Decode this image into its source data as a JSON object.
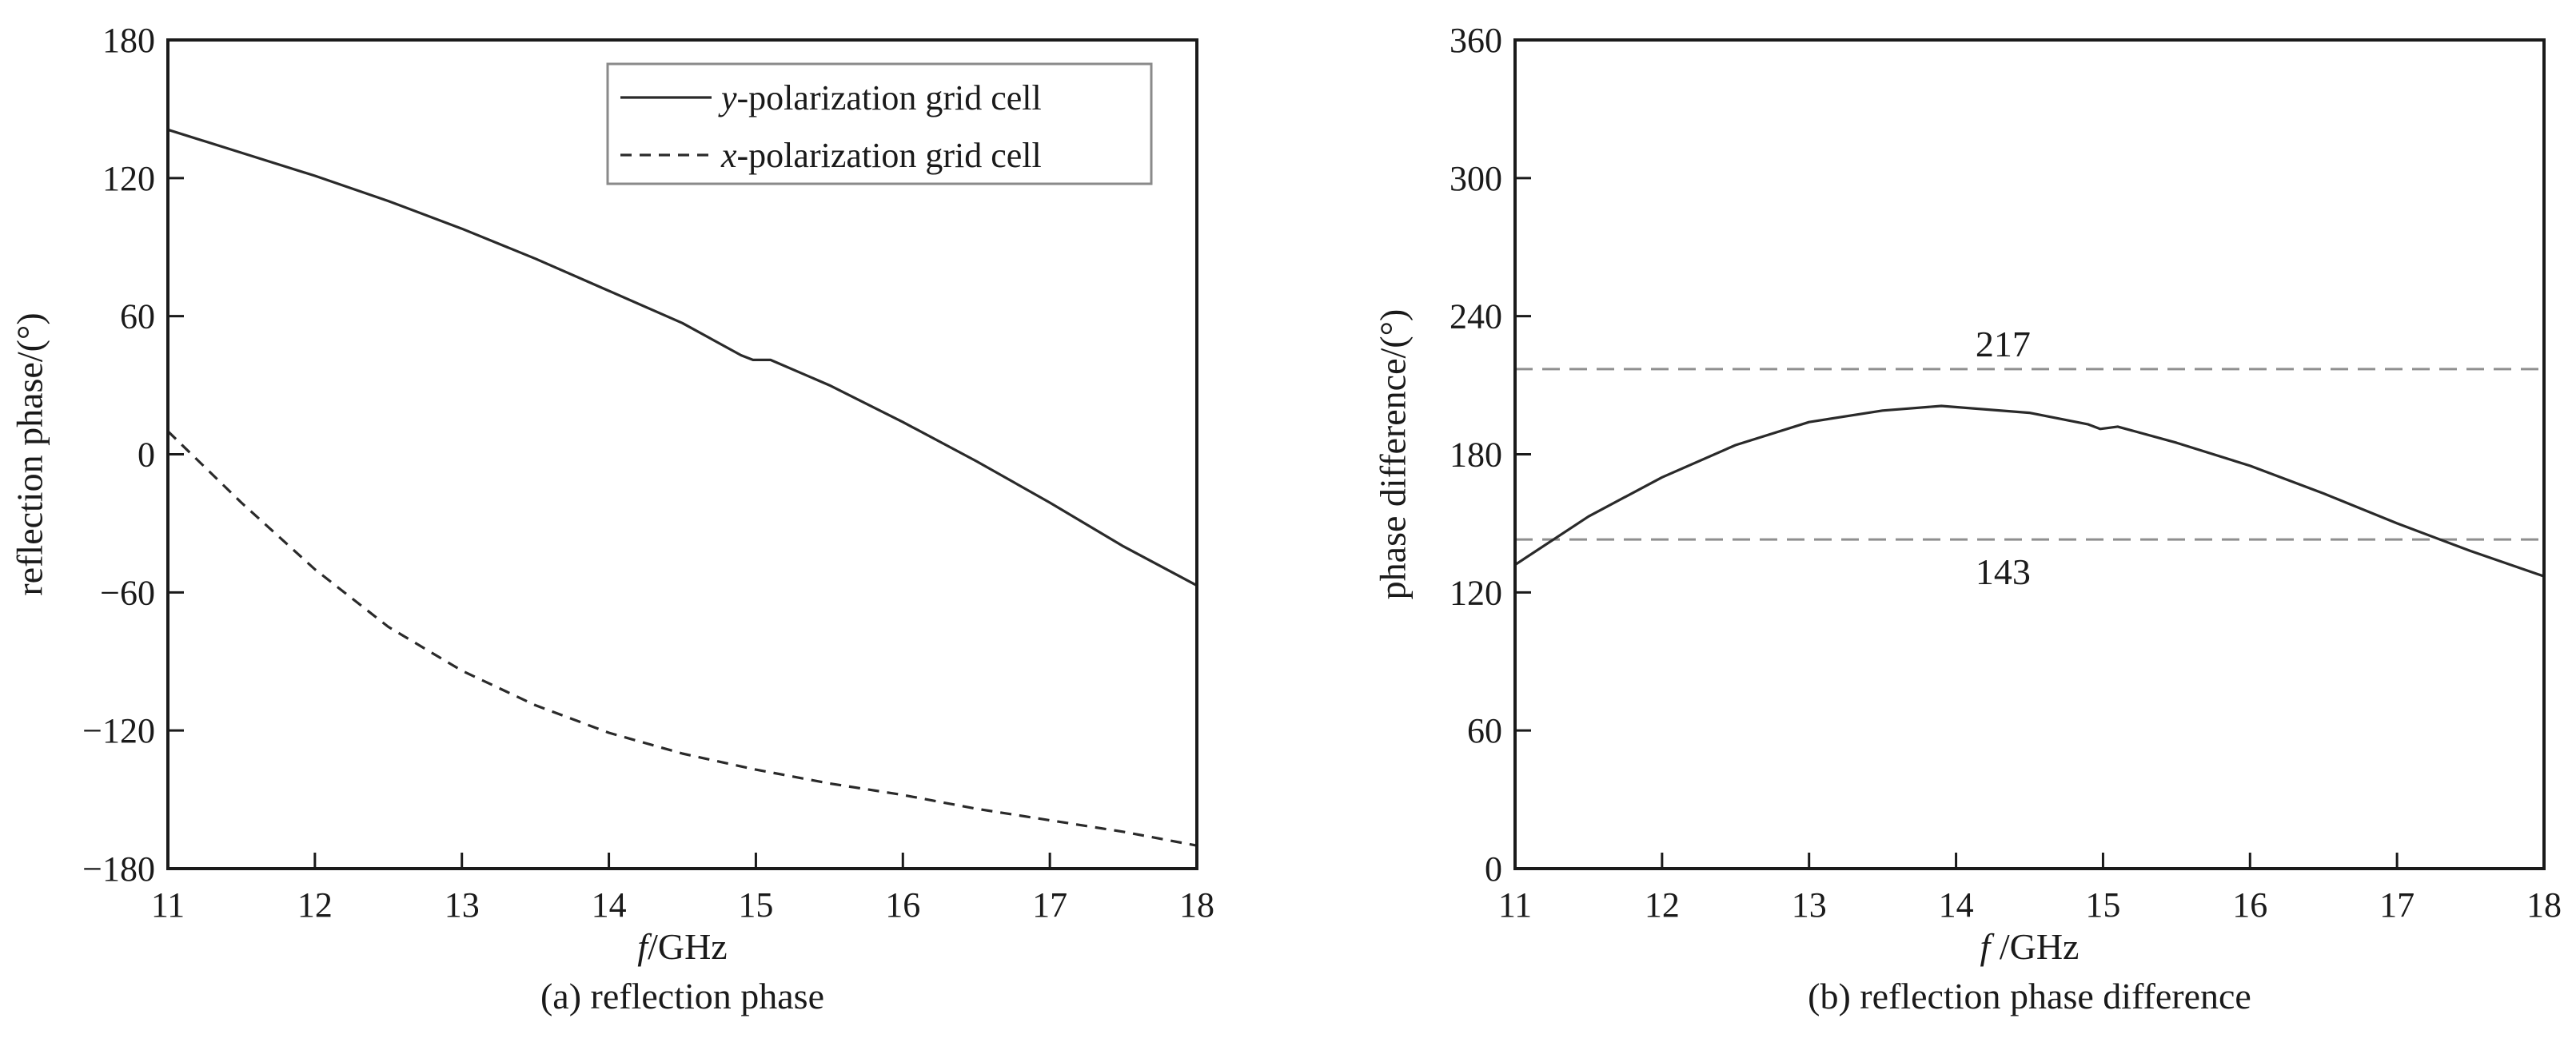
{
  "chart_data": [
    {
      "type": "line",
      "caption": "(a) reflection phase",
      "xlabel": {
        "italic": "f",
        "rest": "/GHz"
      },
      "ylabel": "reflection phase/(°)",
      "xlim": [
        11,
        18
      ],
      "ylim": [
        -180,
        180
      ],
      "xticks": [
        11,
        12,
        13,
        14,
        15,
        16,
        17,
        18
      ],
      "yticks": [
        -180,
        -120,
        -60,
        0,
        60,
        120,
        180
      ],
      "ytick_labels": [
        "−180",
        "−120",
        "−60",
        "0",
        "60",
        "120",
        "180"
      ],
      "grid": false,
      "legend": {
        "placement": "top-right",
        "entries": [
          {
            "series": 0,
            "italic": "y",
            "rest": "-polarization grid cell",
            "style": "solid"
          },
          {
            "series": 1,
            "italic": "x",
            "rest": "-polarization grid cell",
            "style": "dashed"
          }
        ]
      },
      "series": [
        {
          "style": "solid",
          "x": [
            11,
            11.5,
            12,
            12.5,
            13,
            13.5,
            14,
            14.5,
            14.9,
            14.98,
            15.1,
            15.5,
            16,
            16.5,
            17,
            17.5,
            18
          ],
          "y": [
            141,
            131,
            121,
            110,
            98,
            85,
            71,
            57,
            43,
            41,
            41,
            30,
            14,
            -3,
            -21,
            -40,
            -57
          ]
        },
        {
          "style": "dashed",
          "x": [
            11,
            11.5,
            12,
            12.5,
            13,
            13.5,
            14,
            14.5,
            15,
            15.5,
            16,
            16.5,
            17,
            17.5,
            18
          ],
          "y": [
            10,
            -21,
            -50,
            -75,
            -94,
            -109,
            -121,
            -130,
            -137,
            -143,
            -148,
            -154,
            -159,
            -164,
            -170
          ]
        }
      ]
    },
    {
      "type": "line",
      "caption": "(b) reflection phase difference",
      "xlabel": {
        "italic": "f",
        "rest": " /GHz"
      },
      "ylabel": "phase difference/(°)",
      "xlim": [
        11,
        18
      ],
      "ylim": [
        0,
        360
      ],
      "xticks": [
        11,
        12,
        13,
        14,
        15,
        16,
        17,
        18
      ],
      "yticks": [
        0,
        60,
        120,
        180,
        240,
        300,
        360
      ],
      "ytick_labels": [
        "0",
        "60",
        "120",
        "180",
        "240",
        "300",
        "360"
      ],
      "grid": false,
      "reference_lines": [
        {
          "y": 217,
          "label": "217"
        },
        {
          "y": 143,
          "label": "143"
        }
      ],
      "series": [
        {
          "style": "solid",
          "x": [
            11,
            11.5,
            12,
            12.5,
            13,
            13.5,
            13.9,
            14.5,
            14.9,
            14.98,
            15.1,
            15.5,
            16,
            16.5,
            17,
            17.5,
            18
          ],
          "y": [
            132,
            153,
            170,
            184,
            194,
            199,
            201,
            198,
            193,
            191,
            192,
            185,
            175,
            163,
            150,
            138,
            127
          ]
        }
      ]
    }
  ]
}
